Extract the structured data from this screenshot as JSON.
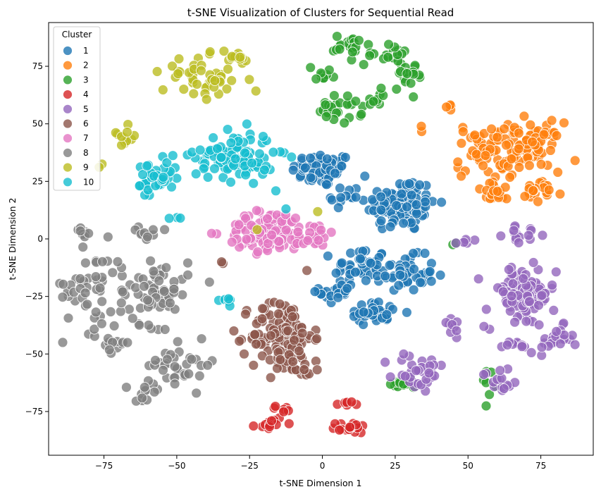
{
  "chart_data": {
    "type": "scatter",
    "title": "t-SNE Visualization of Clusters for Sequential Read",
    "xlabel": "t-SNE Dimension 1",
    "ylabel": "t-SNE Dimension 2",
    "xlim": [
      -94,
      93
    ],
    "ylim": [
      -94,
      94
    ],
    "xticks": [
      -75,
      -50,
      -25,
      0,
      25,
      50,
      75
    ],
    "yticks": [
      -75,
      -50,
      -25,
      0,
      25,
      50,
      75
    ],
    "grid": false,
    "legend": {
      "title": "Cluster",
      "placement": "top-left"
    },
    "series": [
      {
        "name": "1",
        "color": "#1f77b4",
        "blobs": [
          {
            "x": 0,
            "y": 30,
            "sx": 7,
            "sy": 5,
            "n": 70
          },
          {
            "x": 27,
            "y": 15,
            "sx": 8,
            "sy": 8,
            "n": 110
          },
          {
            "x": 13,
            "y": -12,
            "sx": 6,
            "sy": 6,
            "n": 40
          },
          {
            "x": 28,
            "y": -15,
            "sx": 7,
            "sy": 5,
            "n": 50
          },
          {
            "x": 5,
            "y": -23,
            "sx": 4,
            "sy": 4,
            "n": 20
          },
          {
            "x": 18,
            "y": -32,
            "sx": 7,
            "sy": 3,
            "n": 35
          },
          {
            "x": 8,
            "y": 18,
            "sx": 3,
            "sy": 3,
            "n": 10
          }
        ]
      },
      {
        "name": "2",
        "color": "#ff7f0e",
        "blobs": [
          {
            "x": 55,
            "y": 38,
            "sx": 6,
            "sy": 8,
            "n": 45
          },
          {
            "x": 70,
            "y": 40,
            "sx": 8,
            "sy": 7,
            "n": 80
          },
          {
            "x": 60,
            "y": 20,
            "sx": 5,
            "sy": 3,
            "n": 20
          },
          {
            "x": 75,
            "y": 20,
            "sx": 5,
            "sy": 3,
            "n": 20
          },
          {
            "x": 42,
            "y": 58,
            "sx": 3,
            "sy": 3,
            "n": 4
          },
          {
            "x": 34,
            "y": 47,
            "sx": 2,
            "sy": 2,
            "n": 2
          }
        ]
      },
      {
        "name": "3",
        "color": "#2ca02c",
        "blobs": [
          {
            "x": 10,
            "y": 84,
            "sx": 4,
            "sy": 3,
            "n": 20
          },
          {
            "x": 0,
            "y": 72,
            "sx": 3,
            "sy": 2,
            "n": 10
          },
          {
            "x": 6,
            "y": 56,
            "sx": 5,
            "sy": 4,
            "n": 25
          },
          {
            "x": 22,
            "y": 80,
            "sx": 5,
            "sy": 3,
            "n": 20
          },
          {
            "x": 30,
            "y": 72,
            "sx": 3,
            "sy": 3,
            "n": 15
          },
          {
            "x": 20,
            "y": 62,
            "sx": 5,
            "sy": 3,
            "n": 12
          },
          {
            "x": 28,
            "y": -63,
            "sx": 3,
            "sy": 2,
            "n": 12
          },
          {
            "x": 57,
            "y": -61,
            "sx": 2,
            "sy": 4,
            "n": 8
          },
          {
            "x": 46,
            "y": -3,
            "sx": 1,
            "sy": 1,
            "n": 2
          }
        ]
      },
      {
        "name": "4",
        "color": "#d62728",
        "blobs": [
          {
            "x": -18,
            "y": -80,
            "sx": 3,
            "sy": 2,
            "n": 12
          },
          {
            "x": -13,
            "y": -74,
            "sx": 2,
            "sy": 1,
            "n": 6
          },
          {
            "x": 10,
            "y": -82,
            "sx": 4,
            "sy": 1.5,
            "n": 16
          },
          {
            "x": 8,
            "y": -72,
            "sx": 2,
            "sy": 1,
            "n": 6
          }
        ]
      },
      {
        "name": "5",
        "color": "#9467bd",
        "blobs": [
          {
            "x": 68,
            "y": -25,
            "sx": 8,
            "sy": 9,
            "n": 90
          },
          {
            "x": 70,
            "y": 2,
            "sx": 5,
            "sy": 2,
            "n": 15
          },
          {
            "x": 80,
            "y": -44,
            "sx": 4,
            "sy": 4,
            "n": 20
          },
          {
            "x": 67,
            "y": -47,
            "sx": 5,
            "sy": 2,
            "n": 12
          },
          {
            "x": 33,
            "y": -58,
            "sx": 6,
            "sy": 6,
            "n": 35
          },
          {
            "x": 44,
            "y": -37,
            "sx": 3,
            "sy": 3,
            "n": 10
          },
          {
            "x": 61,
            "y": -62,
            "sx": 4,
            "sy": 4,
            "n": 15
          },
          {
            "x": 49,
            "y": -1,
            "sx": 2,
            "sy": 1,
            "n": 6
          }
        ]
      },
      {
        "name": "6",
        "color": "#8c564b",
        "blobs": [
          {
            "x": -14,
            "y": -42,
            "sx": 7,
            "sy": 11,
            "n": 130
          },
          {
            "x": -34,
            "y": -11,
            "sx": 1,
            "sy": 1,
            "n": 2
          },
          {
            "x": -7,
            "y": -55,
            "sx": 5,
            "sy": 3,
            "n": 15
          }
        ]
      },
      {
        "name": "7",
        "color": "#e377c2",
        "blobs": [
          {
            "x": -18,
            "y": 3,
            "sx": 10,
            "sy": 6,
            "n": 110
          },
          {
            "x": -3,
            "y": 2,
            "sx": 5,
            "sy": 4,
            "n": 20
          }
        ]
      },
      {
        "name": "8",
        "color": "#7f7f7f",
        "blobs": [
          {
            "x": -80,
            "y": -20,
            "sx": 6,
            "sy": 14,
            "n": 45
          },
          {
            "x": -58,
            "y": -22,
            "sx": 8,
            "sy": 10,
            "n": 70
          },
          {
            "x": -48,
            "y": -55,
            "sx": 8,
            "sy": 6,
            "n": 35
          },
          {
            "x": -60,
            "y": -65,
            "sx": 3,
            "sy": 3,
            "n": 12
          },
          {
            "x": -60,
            "y": 2,
            "sx": 4,
            "sy": 2,
            "n": 12
          },
          {
            "x": -83,
            "y": 2,
            "sx": 2,
            "sy": 2,
            "n": 8
          },
          {
            "x": -72,
            "y": -45,
            "sx": 3,
            "sy": 4,
            "n": 12
          }
        ]
      },
      {
        "name": "9",
        "color": "#bcbd22",
        "blobs": [
          {
            "x": -40,
            "y": 70,
            "sx": 10,
            "sy": 6,
            "n": 50
          },
          {
            "x": -68,
            "y": 46,
            "sx": 3,
            "sy": 3,
            "n": 12
          },
          {
            "x": -30,
            "y": 78,
            "sx": 4,
            "sy": 3,
            "n": 12
          },
          {
            "x": -77,
            "y": 32,
            "sx": 1,
            "sy": 1,
            "n": 2
          },
          {
            "x": -2,
            "y": 11,
            "sx": 1,
            "sy": 1,
            "n": 1
          },
          {
            "x": -22,
            "y": 3,
            "sx": 1,
            "sy": 1,
            "n": 1
          }
        ]
      },
      {
        "name": "10",
        "color": "#17becf",
        "blobs": [
          {
            "x": -30,
            "y": 36,
            "sx": 9,
            "sy": 7,
            "n": 110
          },
          {
            "x": -57,
            "y": 25,
            "sx": 5,
            "sy": 6,
            "n": 40
          },
          {
            "x": -51,
            "y": 9,
            "sx": 1.5,
            "sy": 1,
            "n": 3
          },
          {
            "x": -33,
            "y": -27,
            "sx": 2,
            "sy": 2,
            "n": 6
          },
          {
            "x": -13,
            "y": 13,
            "sx": 1,
            "sy": 1,
            "n": 1
          }
        ]
      }
    ]
  }
}
